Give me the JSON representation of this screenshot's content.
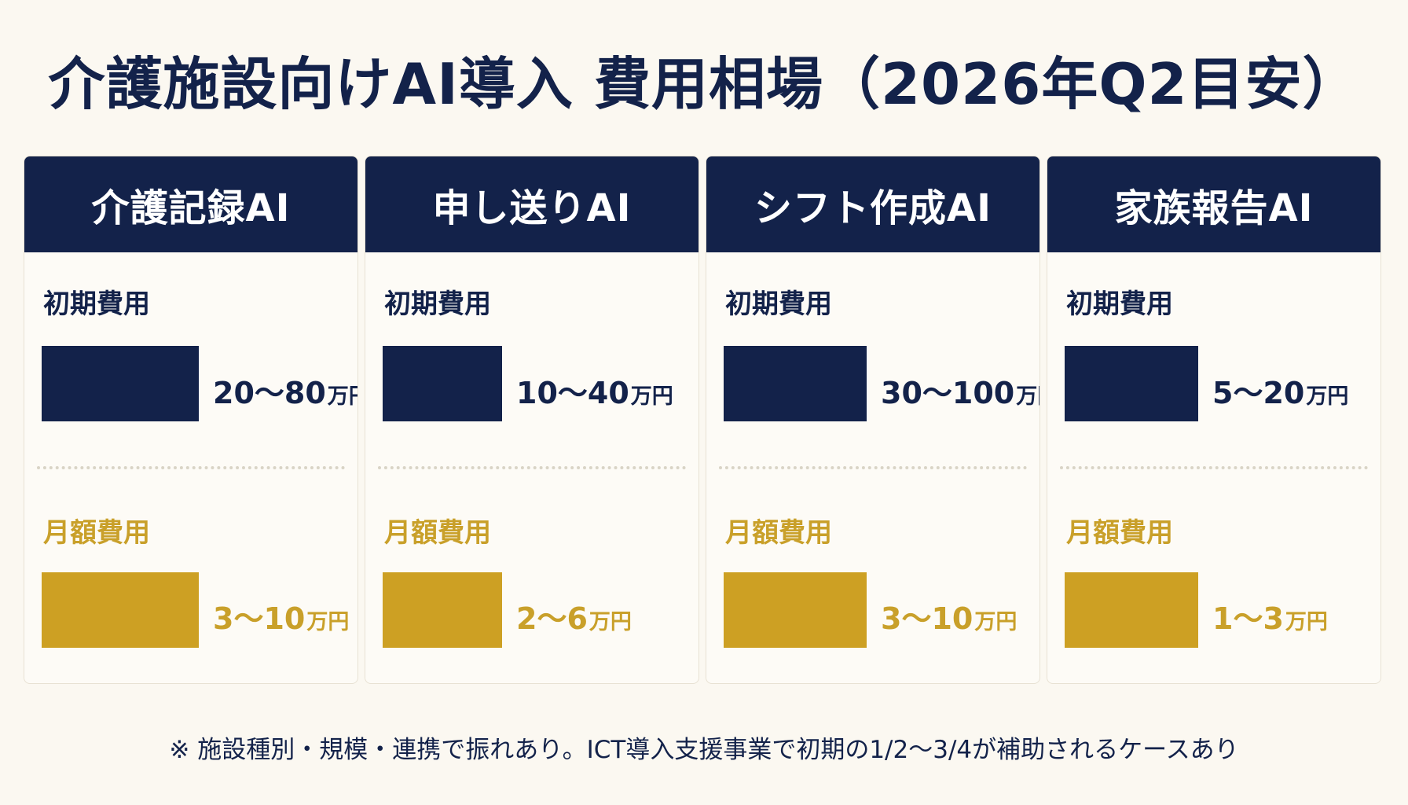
{
  "title": "介護施設向けAI導入 費用相場（2026年Q2目安）",
  "labels": {
    "initial": "初期費用",
    "monthly": "月額費用",
    "unit": "万円"
  },
  "colors": {
    "navy": "#13224a",
    "gold": "#cda023",
    "background": "#fbf8f1"
  },
  "footnote": "※ 施設種別・規模・連携で振れあり。ICT導入支援事業で初期の1/2〜3/4が補助されるケースあり",
  "chart_data": {
    "type": "bar",
    "title": "介護施設向けAI導入 費用相場（2026年Q2目安）",
    "categories": [
      "介護記録AI",
      "申し送りAI",
      "シフト作成AI",
      "家族報告AI"
    ],
    "series": [
      {
        "name": "初期費用",
        "ranges": [
          [
            20,
            80
          ],
          [
            10,
            40
          ],
          [
            30,
            100
          ],
          [
            5,
            20
          ]
        ],
        "labels": [
          "20〜80",
          "10〜40",
          "30〜100",
          "5〜20"
        ]
      },
      {
        "name": "月額費用",
        "ranges": [
          [
            3,
            10
          ],
          [
            2,
            6
          ],
          [
            3,
            10
          ],
          [
            1,
            3
          ]
        ],
        "labels": [
          "3〜10",
          "2〜6",
          "3〜10",
          "1〜3"
        ]
      }
    ],
    "unit": "万円",
    "grid": false
  }
}
